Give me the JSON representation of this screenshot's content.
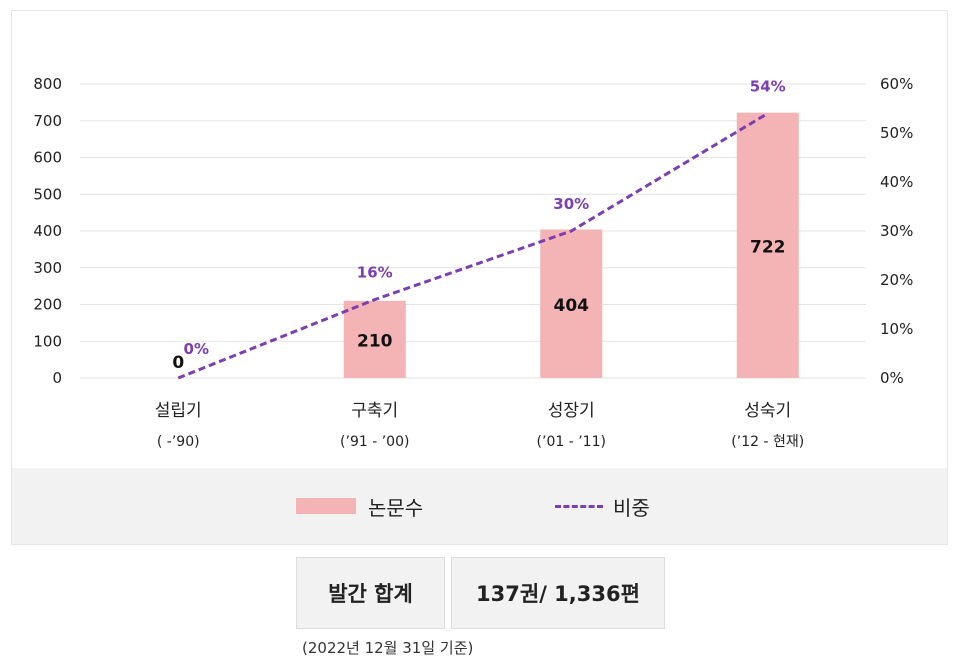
{
  "chart_data": {
    "type": "bar",
    "categories": [
      "설립기",
      "구축기",
      "성장기",
      "성숙기"
    ],
    "category_periods": [
      "( -’90)",
      "(’91 - ’00)",
      "(’01 - ’11)",
      "(’12 - 현재)"
    ],
    "series": [
      {
        "name": "논문수",
        "type": "bar",
        "axis": "left",
        "color": "#f4b3b4",
        "values": [
          0,
          210,
          404,
          722
        ],
        "labels": [
          "0",
          "210",
          "404",
          "722"
        ]
      },
      {
        "name": "비중",
        "type": "line",
        "axis": "right",
        "color": "#7b3fb0",
        "style": "dashed",
        "values": [
          0,
          16,
          30,
          54
        ],
        "labels": [
          "0%",
          "16%",
          "30%",
          "54%"
        ]
      }
    ],
    "ylim": [
      0,
      800
    ],
    "yticks": [
      "0",
      "100",
      "200",
      "300",
      "400",
      "500",
      "600",
      "700",
      "800"
    ],
    "y2lim": [
      0,
      60
    ],
    "y2ticks": [
      "0%",
      "10%",
      "20%",
      "30%",
      "40%",
      "50%",
      "60%"
    ],
    "grid": true,
    "legend_position": "bottom"
  },
  "legend": {
    "bar_label": "논문수",
    "line_label": "비중"
  },
  "summary": {
    "label": "발간 합계",
    "value": "137권/ 1,336편"
  },
  "note": "(2022년 12월 31일 기준)"
}
